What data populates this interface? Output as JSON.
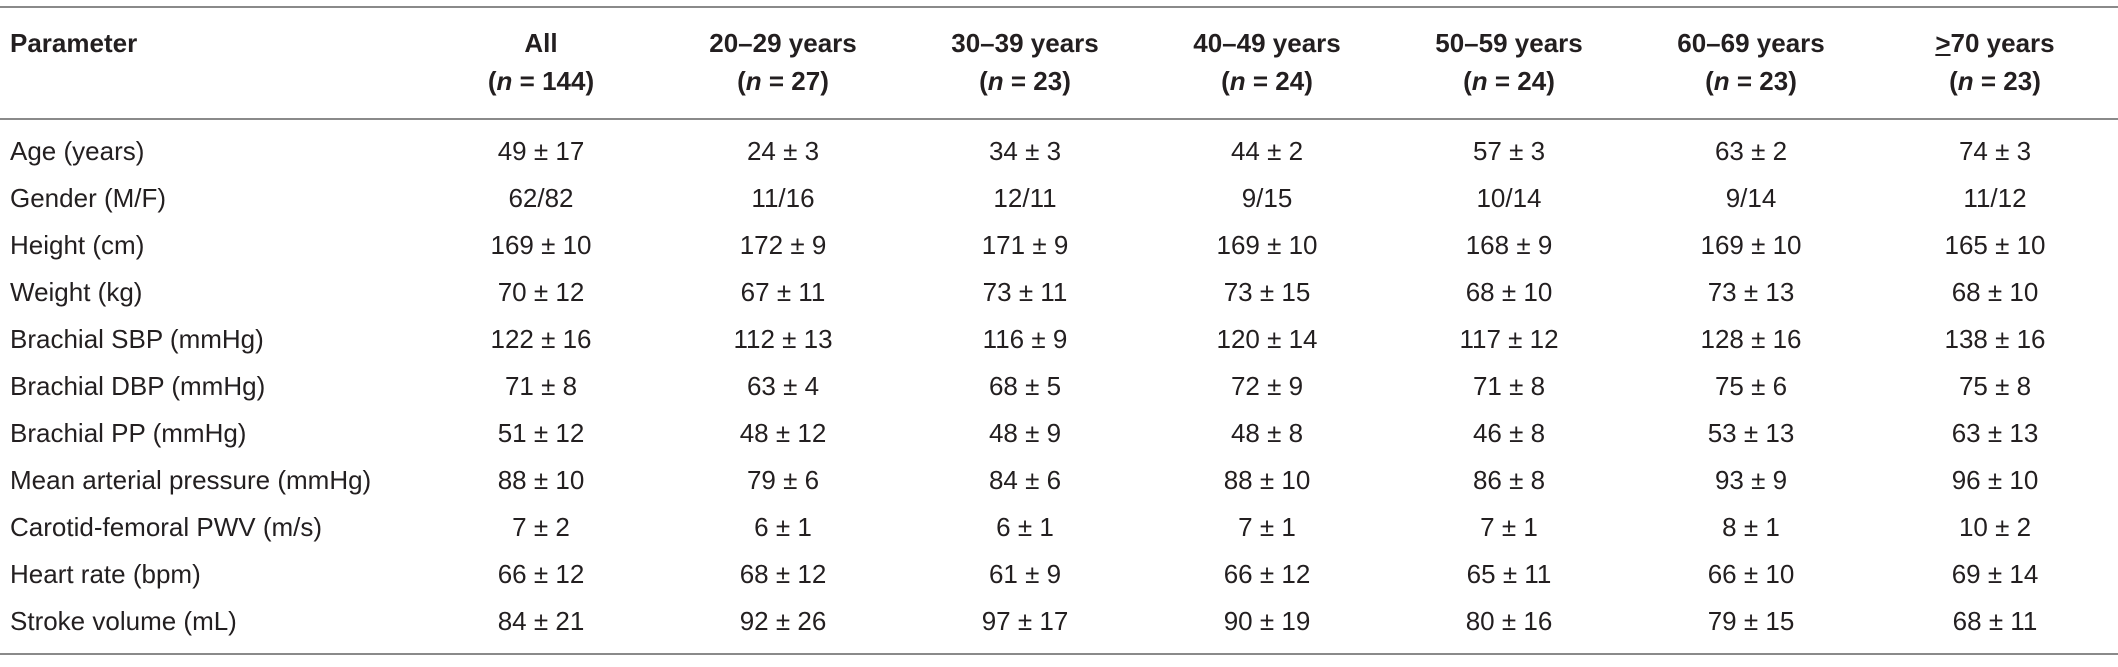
{
  "table": {
    "header": {
      "parameter_label": "Parameter",
      "groups": [
        {
          "label": "All",
          "n_prefix": "(",
          "n_var": "n",
          "n_value": " = 144)"
        },
        {
          "label": "20–29 years",
          "n_prefix": "(",
          "n_var": "n",
          "n_value": " = 27)"
        },
        {
          "label": "30–39 years",
          "n_prefix": "(",
          "n_var": "n",
          "n_value": " = 23)"
        },
        {
          "label": "40–49 years",
          "n_prefix": "(",
          "n_var": "n",
          "n_value": " = 24)"
        },
        {
          "label": "50–59 years",
          "n_prefix": "(",
          "n_var": "n",
          "n_value": " = 24)"
        },
        {
          "label": "60–69 years",
          "n_prefix": "(",
          "n_var": "n",
          "n_value": " = 23)"
        },
        {
          "label_symbol": ">",
          "label": "70 years",
          "n_prefix": "(",
          "n_var": "n",
          "n_value": " = 23)"
        }
      ]
    },
    "rows": [
      {
        "parameter": "Age (years)",
        "values": [
          "49 ± 17",
          "24 ± 3",
          "34 ± 3",
          "44 ± 2",
          "57 ± 3",
          "63 ± 2",
          "74 ± 3"
        ]
      },
      {
        "parameter": "Gender (M/F)",
        "values": [
          "62/82",
          "11/16",
          "12/11",
          "9/15",
          "10/14",
          "9/14",
          "11/12"
        ]
      },
      {
        "parameter": "Height (cm)",
        "values": [
          "169 ± 10",
          "172 ± 9",
          "171 ± 9",
          "169 ± 10",
          "168 ± 9",
          "169 ± 10",
          "165 ± 10"
        ]
      },
      {
        "parameter": "Weight (kg)",
        "values": [
          "70 ± 12",
          "67 ± 11",
          "73 ± 11",
          "73 ± 15",
          "68 ± 10",
          "73 ± 13",
          "68 ± 10"
        ]
      },
      {
        "parameter": "Brachial SBP (mmHg)",
        "values": [
          "122 ± 16",
          "112 ± 13",
          "116 ± 9",
          "120 ± 14",
          "117 ± 12",
          "128 ± 16",
          "138 ± 16"
        ]
      },
      {
        "parameter": "Brachial DBP (mmHg)",
        "values": [
          "71 ± 8",
          "63 ± 4",
          "68 ± 5",
          "72 ± 9",
          "71 ± 8",
          "75 ± 6",
          "75 ± 8"
        ]
      },
      {
        "parameter": "Brachial PP (mmHg)",
        "values": [
          "51 ± 12",
          "48 ± 12",
          "48 ± 9",
          "48 ± 8",
          "46 ± 8",
          "53 ± 13",
          "63 ± 13"
        ]
      },
      {
        "parameter": "Mean arterial pressure (mmHg)",
        "values": [
          "88 ± 10",
          "79 ± 6",
          "84 ± 6",
          "88 ± 10",
          "86 ± 8",
          "93 ± 9",
          "96 ± 10"
        ]
      },
      {
        "parameter": "Carotid-femoral PWV (m/s)",
        "values": [
          "7 ± 2",
          "6 ± 1",
          "6 ± 1",
          "7 ± 1",
          "7 ± 1",
          "8 ± 1",
          "10 ± 2"
        ]
      },
      {
        "parameter": "Heart rate (bpm)",
        "values": [
          "66 ± 12",
          "68 ± 12",
          "61 ± 9",
          "66 ± 12",
          "65 ± 11",
          "66 ± 10",
          "69 ± 14"
        ]
      },
      {
        "parameter": "Stroke volume (mL)",
        "values": [
          "84 ± 21",
          "92 ± 26",
          "97 ± 17",
          "90 ± 19",
          "80 ± 16",
          "79 ± 15",
          "68 ± 11"
        ]
      }
    ]
  },
  "colors": {
    "text": "#231f20",
    "rules": "#8a8a8a",
    "background": "#ffffff"
  }
}
